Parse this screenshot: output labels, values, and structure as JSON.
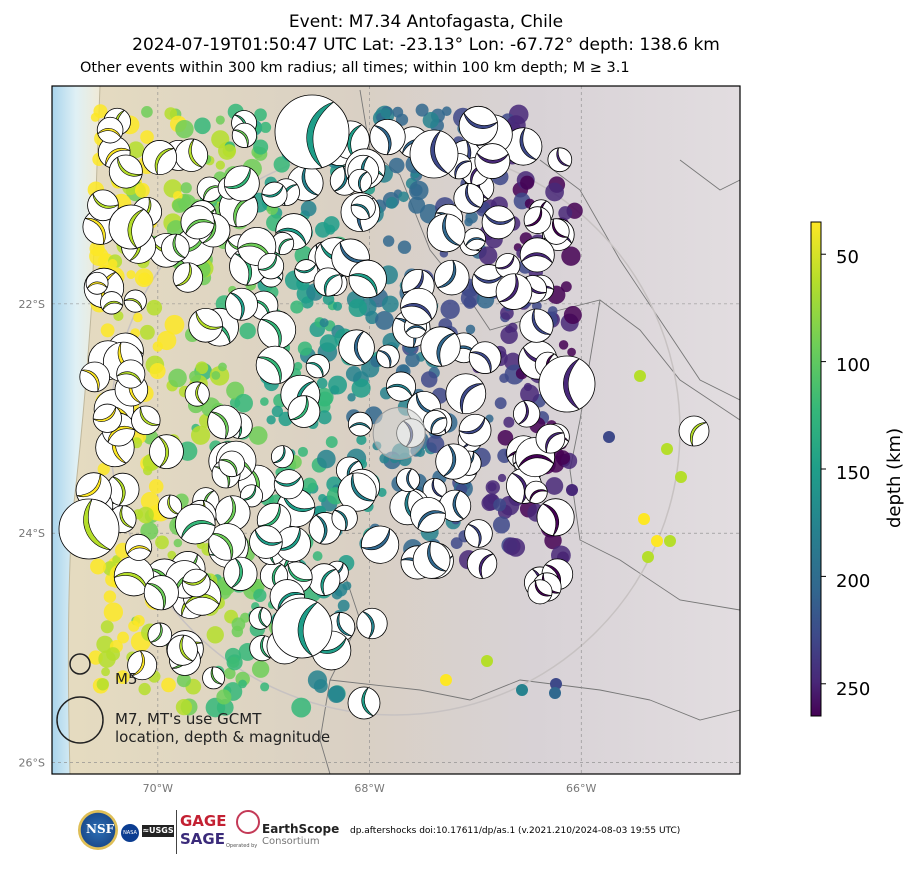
{
  "title": {
    "line1": "Event: M7.34 Antofagasta, Chile",
    "line2": "2024-07-19T01:50:47 UTC Lat: -23.13° Lon: -67.72° depth: 138.6 km",
    "subtitle": "Other events within 300 km radius; all times; within 100 km depth; M ≥ 3.1"
  },
  "map": {
    "lon_range": [
      -71.0,
      -64.5
    ],
    "lat_range": [
      -26.1,
      -20.1
    ],
    "lon_ticks": [
      {
        "lon": -70,
        "label": "70°W"
      },
      {
        "lon": -68,
        "label": "68°W"
      },
      {
        "lon": -66,
        "label": "66°W"
      }
    ],
    "lat_ticks": [
      {
        "lat": -22,
        "label": "22°S"
      },
      {
        "lat": -24,
        "label": "24°S"
      },
      {
        "lat": -26,
        "label": "26°S"
      }
    ],
    "mainshock": {
      "lon": -67.72,
      "lat": -23.13,
      "depth_km": 138.6,
      "mag": 7.34
    }
  },
  "colorbar": {
    "label": "depth (km)",
    "ticks": [
      "50",
      "100",
      "150",
      "200",
      "250"
    ],
    "range_km": [
      35,
      265
    ],
    "colors": [
      "#fde725",
      "#b5de2b",
      "#6ece58",
      "#35b779",
      "#1f9e89",
      "#26828e",
      "#31688e",
      "#3e4989",
      "#482878",
      "#440154"
    ]
  },
  "legend": {
    "small_label": "M5",
    "large_label_line1": "M7, MT's use GCMT",
    "large_label_line2": "location, depth & magnitude"
  },
  "footer": {
    "citation": "dp.aftershocks doi:10.17611/dp/as.1 (v.2021.210/2024-08-03 19:55 UTC)",
    "logos": [
      "NSF",
      "NASA",
      "USGS",
      "GAGE",
      "SAGE",
      "EarthScope"
    ],
    "earthscope_name": "EarthScope",
    "earthscope_sub": "Consortium",
    "earthscope_operated": "Operated by"
  }
}
